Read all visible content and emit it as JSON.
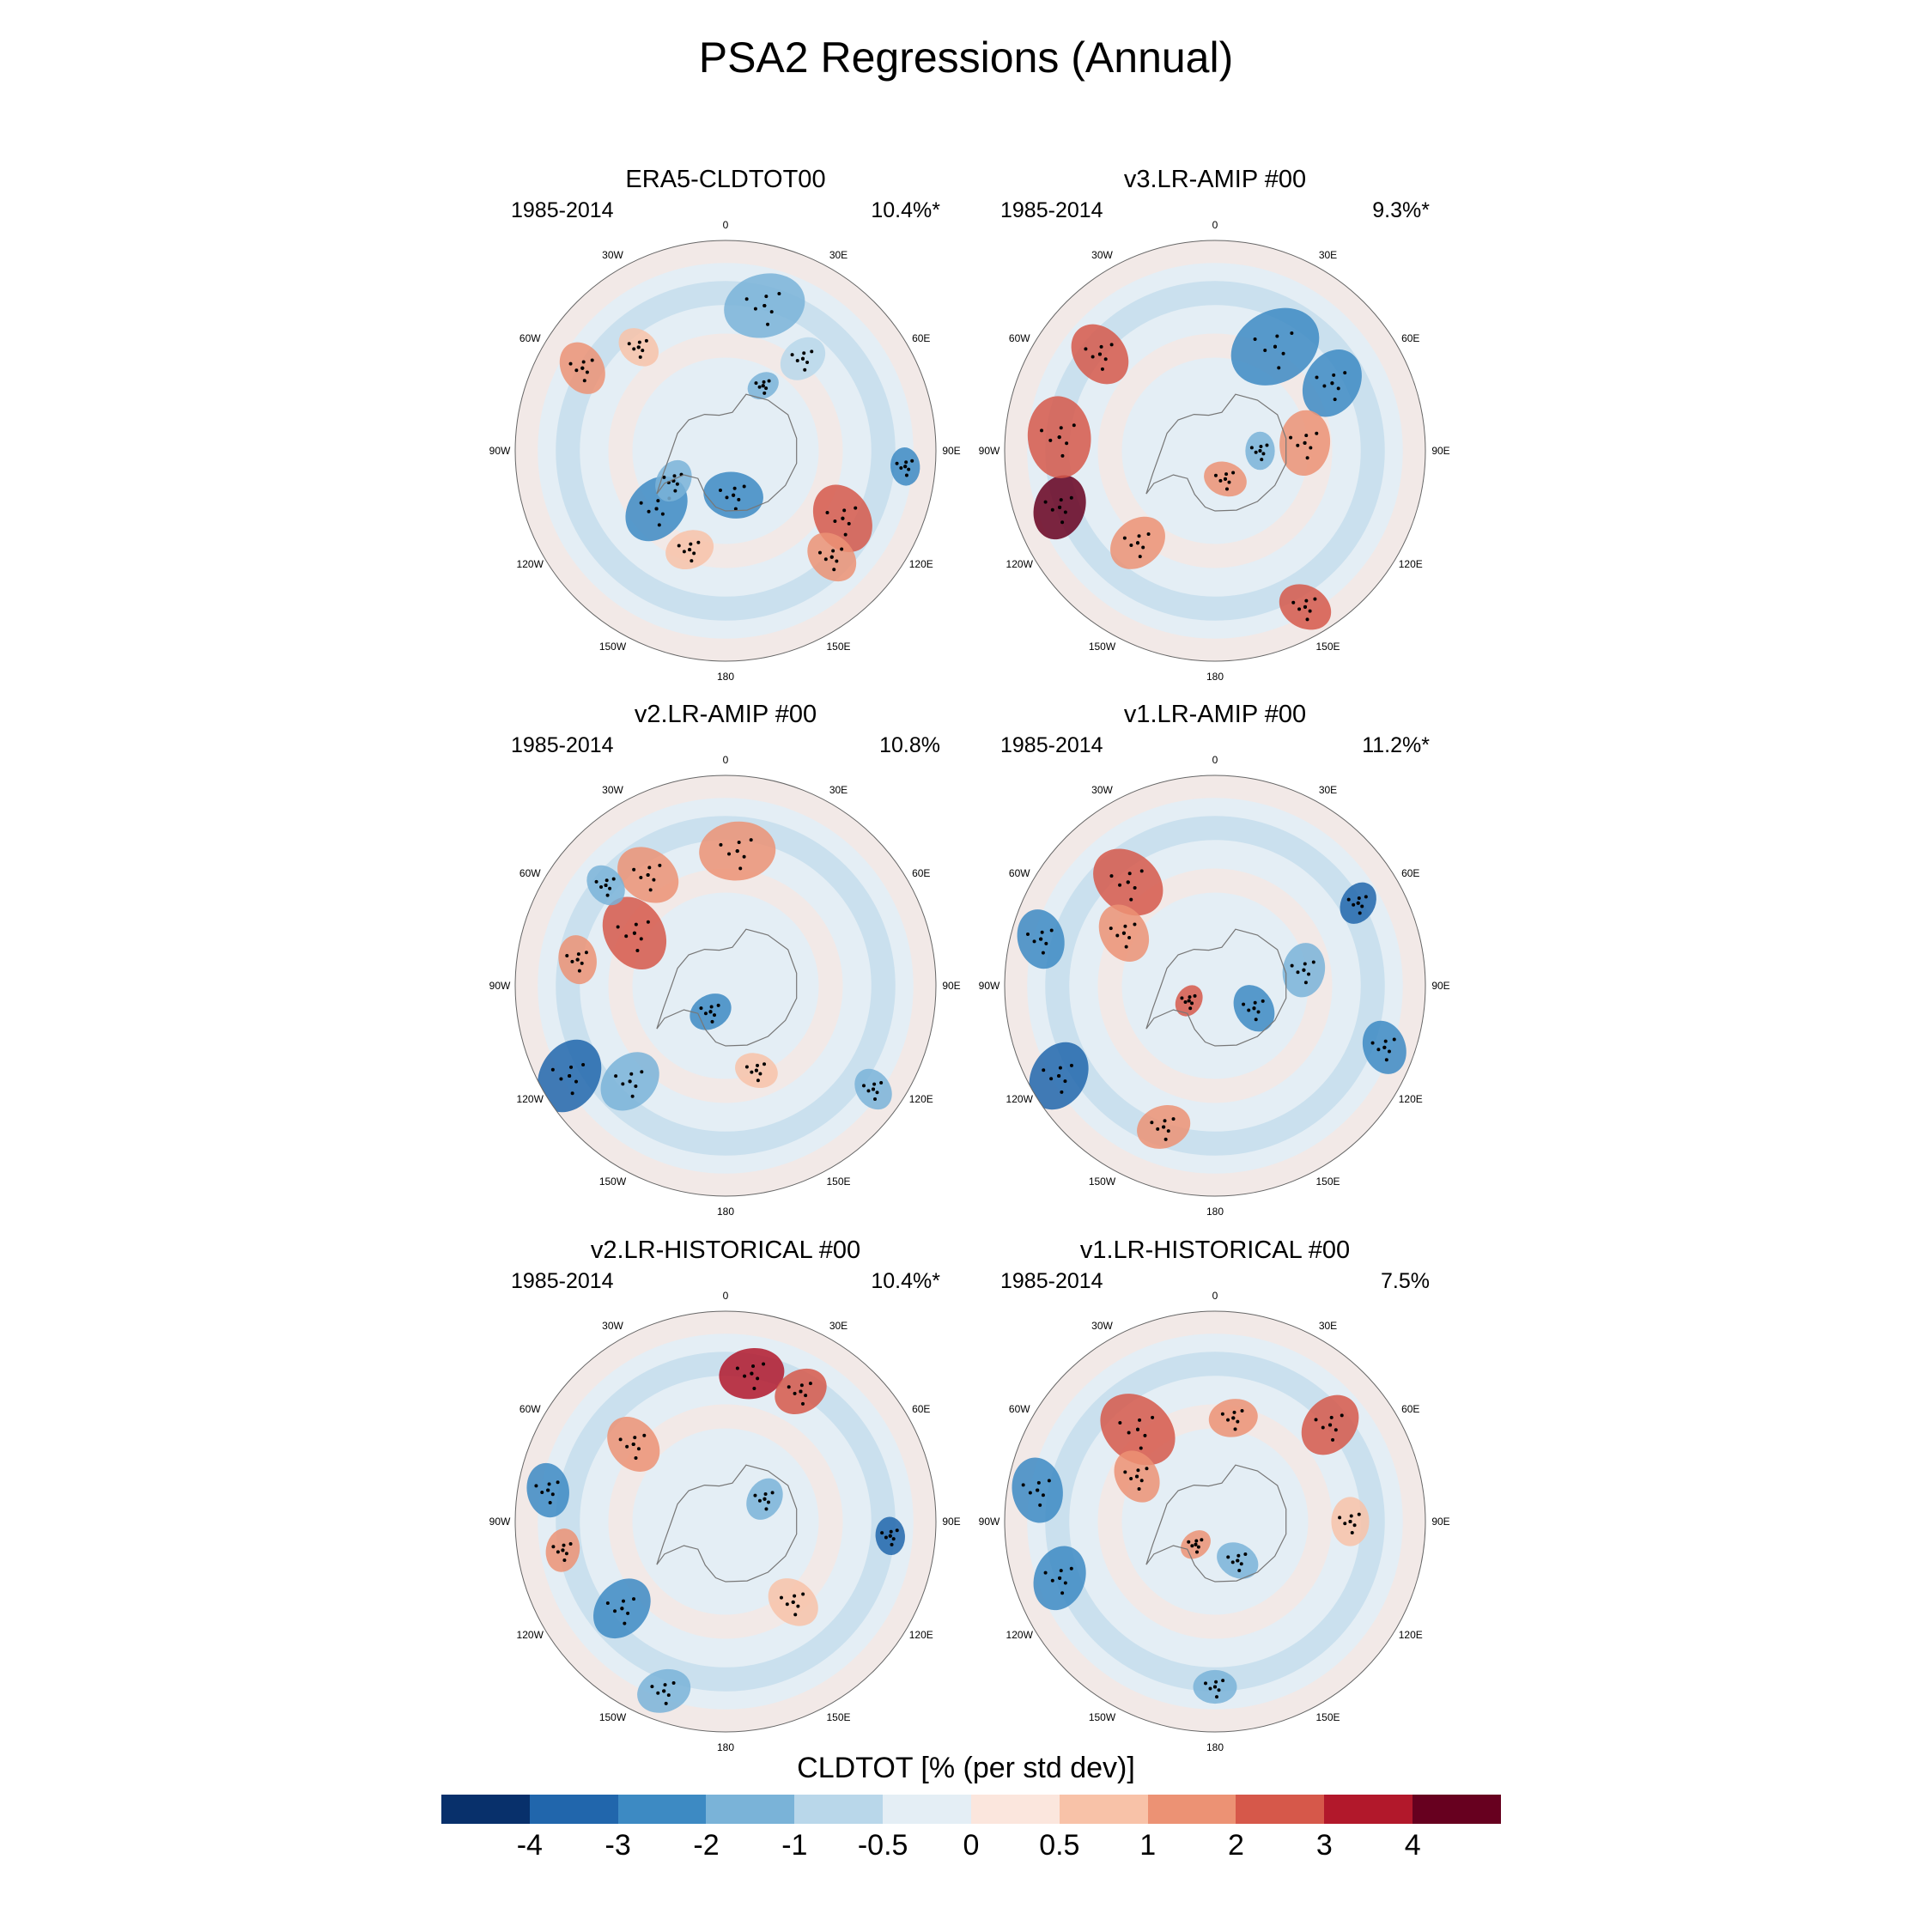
{
  "title": "PSA2 Regressions (Annual)",
  "colors": [
    "#08306b",
    "#2166ac",
    "#3d8ac3",
    "#7ab3d8",
    "#b9d7ea",
    "#e4eef5",
    "#fbe6dd",
    "#f8c2a8",
    "#ec9274",
    "#d6584a",
    "#b2182b",
    "#67001f"
  ],
  "longitude_labels": [
    "0",
    "30E",
    "60E",
    "90E",
    "120E",
    "150E",
    "180",
    "150W",
    "120W",
    "90W",
    "60W",
    "30W"
  ],
  "panels": [
    {
      "title": "ERA5-CLDTOT00",
      "period": "1985-2014",
      "percent": "10.4%*",
      "blobs": [
        {
          "lat": -60,
          "lon": -50,
          "r": 0.13,
          "c": 2
        },
        {
          "lat": -70,
          "lon": -60,
          "r": 0.08,
          "c": 3
        },
        {
          "lat": -75,
          "lon": 10,
          "r": 0.11,
          "c": 2
        },
        {
          "lat": -45,
          "lon": 60,
          "r": 0.13,
          "c": 9
        },
        {
          "lat": -40,
          "lon": 45,
          "r": 0.1,
          "c": 8
        },
        {
          "lat": -30,
          "lon": 85,
          "r": 0.07,
          "c": 2
        },
        {
          "lat": -40,
          "lon": 165,
          "r": 0.15,
          "c": 3
        },
        {
          "lat": -50,
          "lon": 140,
          "r": 0.09,
          "c": 4
        },
        {
          "lat": -35,
          "lon": -120,
          "r": 0.1,
          "c": 8
        },
        {
          "lat": -45,
          "lon": -140,
          "r": 0.08,
          "c": 7
        },
        {
          "lat": -65,
          "lon": 150,
          "r": 0.06,
          "c": 3
        },
        {
          "lat": -55,
          "lon": -20,
          "r": 0.09,
          "c": 7
        }
      ]
    },
    {
      "title": "v3.LR-AMIP  #00",
      "period": "1985-2014",
      "percent": "9.3%*",
      "blobs": [
        {
          "lat": -35,
          "lon": -70,
          "r": 0.12,
          "c": 11
        },
        {
          "lat": -38,
          "lon": -95,
          "r": 0.15,
          "c": 9
        },
        {
          "lat": -40,
          "lon": -130,
          "r": 0.12,
          "c": 9
        },
        {
          "lat": -30,
          "lon": 30,
          "r": 0.1,
          "c": 9
        },
        {
          "lat": -50,
          "lon": -40,
          "r": 0.11,
          "c": 8
        },
        {
          "lat": -50,
          "lon": 150,
          "r": 0.17,
          "c": 2
        },
        {
          "lat": -45,
          "lon": 120,
          "r": 0.13,
          "c": 2
        },
        {
          "lat": -60,
          "lon": 95,
          "r": 0.12,
          "c": 8
        },
        {
          "lat": -80,
          "lon": 20,
          "r": 0.08,
          "c": 8
        },
        {
          "lat": -75,
          "lon": 90,
          "r": 0.07,
          "c": 3
        }
      ]
    },
    {
      "title": "v2.LR-AMIP  #00",
      "period": "1985-2014",
      "percent": "10.8%",
      "blobs": [
        {
          "lat": -30,
          "lon": -60,
          "r": 0.14,
          "c": 1
        },
        {
          "lat": -45,
          "lon": -45,
          "r": 0.12,
          "c": 3
        },
        {
          "lat": -55,
          "lon": -120,
          "r": 0.14,
          "c": 9
        },
        {
          "lat": -45,
          "lon": -145,
          "r": 0.12,
          "c": 8
        },
        {
          "lat": -45,
          "lon": 175,
          "r": 0.14,
          "c": 8
        },
        {
          "lat": -80,
          "lon": -30,
          "r": 0.08,
          "c": 2
        },
        {
          "lat": -30,
          "lon": 55,
          "r": 0.08,
          "c": 3
        },
        {
          "lat": -40,
          "lon": -100,
          "r": 0.09,
          "c": 8
        },
        {
          "lat": -38,
          "lon": -130,
          "r": 0.08,
          "c": 3
        },
        {
          "lat": -60,
          "lon": 20,
          "r": 0.08,
          "c": 7
        }
      ]
    },
    {
      "title": "v1.LR-AMIP  #00",
      "period": "1985-2014",
      "percent": "11.2%*",
      "blobs": [
        {
          "lat": -30,
          "lon": -60,
          "r": 0.13,
          "c": 1
        },
        {
          "lat": -30,
          "lon": -105,
          "r": 0.11,
          "c": 2
        },
        {
          "lat": -45,
          "lon": -140,
          "r": 0.14,
          "c": 9
        },
        {
          "lat": -55,
          "lon": -120,
          "r": 0.11,
          "c": 8
        },
        {
          "lat": -30,
          "lon": 70,
          "r": 0.1,
          "c": 2
        },
        {
          "lat": -35,
          "lon": 120,
          "r": 0.08,
          "c": 1
        },
        {
          "lat": -75,
          "lon": 60,
          "r": 0.09,
          "c": 2
        },
        {
          "lat": -60,
          "lon": 100,
          "r": 0.1,
          "c": 3
        },
        {
          "lat": -40,
          "lon": -20,
          "r": 0.1,
          "c": 8
        },
        {
          "lat": -80,
          "lon": -60,
          "r": 0.06,
          "c": 9
        }
      ]
    },
    {
      "title": "v2.LR-HISTORICAL  #00",
      "period": "1985-2014",
      "percent": "10.4%*",
      "blobs": [
        {
          "lat": -40,
          "lon": 170,
          "r": 0.12,
          "c": 10
        },
        {
          "lat": -40,
          "lon": 150,
          "r": 0.1,
          "c": 9
        },
        {
          "lat": -30,
          "lon": -100,
          "r": 0.1,
          "c": 2
        },
        {
          "lat": -35,
          "lon": -80,
          "r": 0.08,
          "c": 8
        },
        {
          "lat": -45,
          "lon": -50,
          "r": 0.12,
          "c": 2
        },
        {
          "lat": -30,
          "lon": -20,
          "r": 0.1,
          "c": 3
        },
        {
          "lat": -35,
          "lon": 85,
          "r": 0.07,
          "c": 1
        },
        {
          "lat": -50,
          "lon": -130,
          "r": 0.11,
          "c": 8
        },
        {
          "lat": -75,
          "lon": 120,
          "r": 0.08,
          "c": 3
        },
        {
          "lat": -55,
          "lon": 40,
          "r": 0.1,
          "c": 7
        }
      ]
    },
    {
      "title": "v1.LR-HISTORICAL  #00",
      "period": "1985-2014",
      "percent": "7.5%",
      "blobs": [
        {
          "lat": -30,
          "lon": -100,
          "r": 0.12,
          "c": 2
        },
        {
          "lat": -35,
          "lon": -70,
          "r": 0.12,
          "c": 2
        },
        {
          "lat": -50,
          "lon": -140,
          "r": 0.15,
          "c": 9
        },
        {
          "lat": -60,
          "lon": -120,
          "r": 0.1,
          "c": 8
        },
        {
          "lat": -40,
          "lon": 130,
          "r": 0.12,
          "c": 9
        },
        {
          "lat": -75,
          "lon": 30,
          "r": 0.08,
          "c": 3
        },
        {
          "lat": -45,
          "lon": 90,
          "r": 0.09,
          "c": 7
        },
        {
          "lat": -35,
          "lon": 0,
          "r": 0.08,
          "c": 3
        },
        {
          "lat": -55,
          "lon": 170,
          "r": 0.09,
          "c": 8
        },
        {
          "lat": -80,
          "lon": -40,
          "r": 0.06,
          "c": 8
        }
      ]
    }
  ],
  "colorbar": {
    "title": "CLDTOT [% (per std dev)]",
    "ticks": [
      "-4",
      "-3",
      "-2",
      "-1",
      "-0.5",
      "0",
      "0.5",
      "1",
      "2",
      "3",
      "4"
    ]
  }
}
